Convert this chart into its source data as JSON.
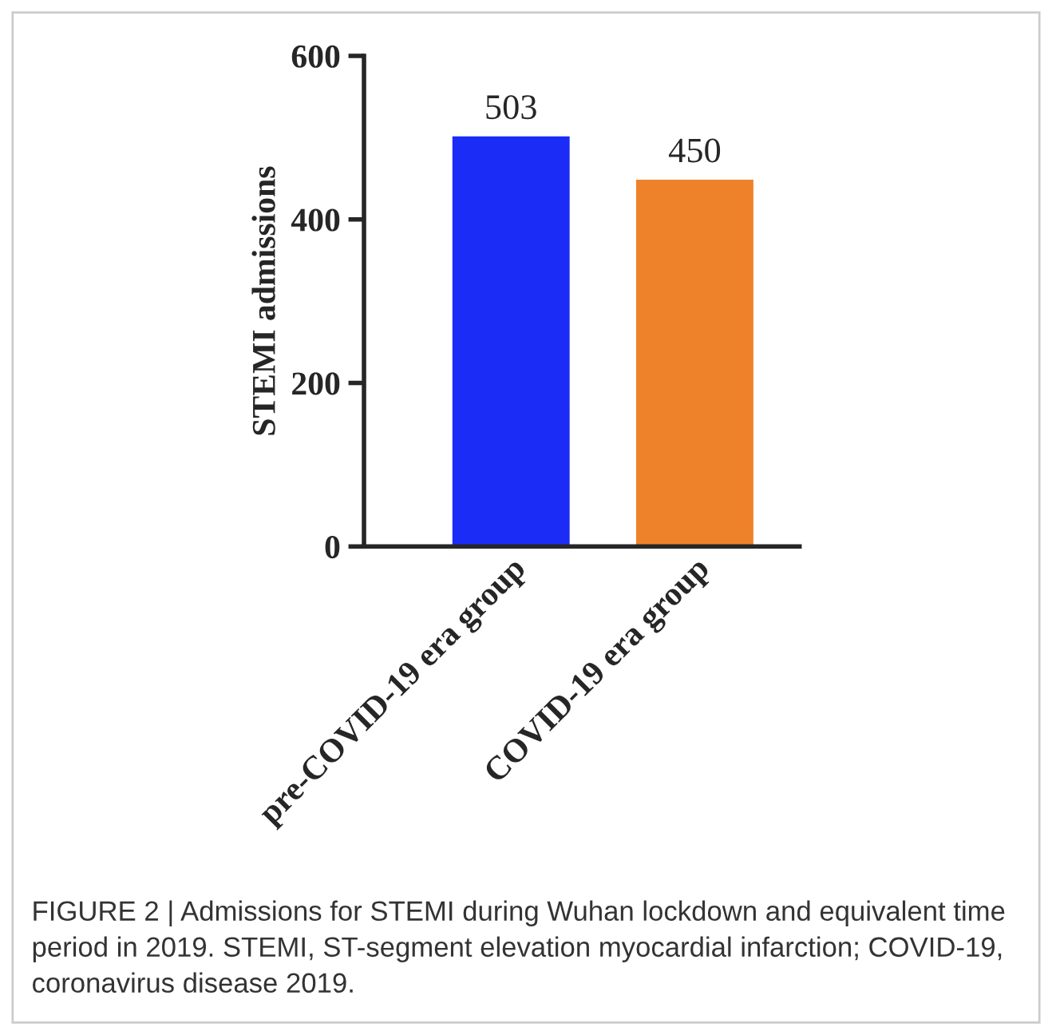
{
  "chart_data": {
    "type": "bar",
    "ylabel": "STEMI admissions",
    "categories": [
      "pre-COVID-19 era group",
      "COVID-19 era group"
    ],
    "colors": [
      "#1a2cf5",
      "#ee822a"
    ],
    "values": [
      503,
      450
    ],
    "data_labels": true,
    "ylim": [
      0,
      600
    ],
    "yticks": [
      0,
      200,
      400,
      600
    ],
    "grid": false,
    "legend": false,
    "annotations": [
      "FIGURE 2 | Admissions for STEMI during Wuhan lockdown and equivalent time period in 2019. STEMI, ST-segment elevation myocardial infarction; COVID-19, coronavirus disease 2019."
    ]
  }
}
